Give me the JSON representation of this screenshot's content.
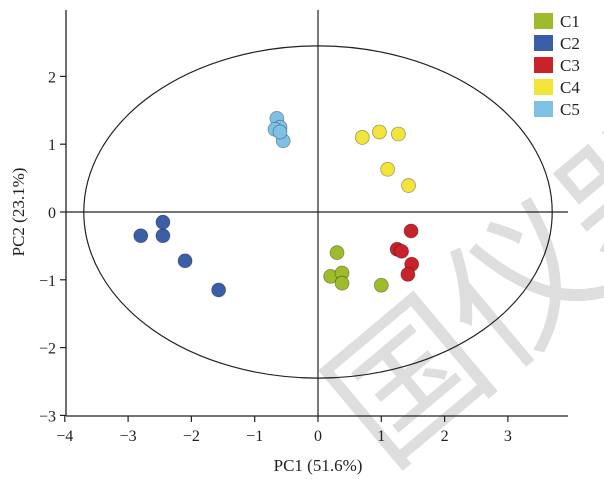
{
  "chart_data": {
    "type": "scatter",
    "title": "",
    "xlabel": "PC1 (51.6%)",
    "ylabel": "PC2 (23.1%)",
    "xlim": [
      -4,
      4
    ],
    "ylim": [
      -3,
      3
    ],
    "xticks": [
      -4,
      -3,
      -2,
      -1,
      0,
      1,
      2,
      3
    ],
    "yticks": [
      -3,
      -2,
      -1,
      0,
      1,
      2
    ],
    "x_tick_labels": [
      "−4",
      "−3",
      "−2",
      "−1",
      "0",
      "1",
      "2",
      "3"
    ],
    "y_tick_labels": [
      "−3",
      "−2",
      "−1",
      "0",
      "1",
      "2"
    ],
    "grid": false,
    "legend_position": "top-right",
    "confidence_ellipse": {
      "center": [
        0,
        0
      ],
      "rx": 3.7,
      "ry": 2.45
    },
    "series": [
      {
        "name": "C1",
        "color": "#9dbb2a",
        "points": [
          [
            0.3,
            -0.6
          ],
          [
            0.2,
            -0.95
          ],
          [
            0.38,
            -0.9
          ],
          [
            0.38,
            -1.05
          ],
          [
            1.0,
            -1.08
          ]
        ]
      },
      {
        "name": "C2",
        "color": "#3a5ea8",
        "points": [
          [
            -2.8,
            -0.35
          ],
          [
            -2.45,
            -0.35
          ],
          [
            -2.45,
            -0.15
          ],
          [
            -2.1,
            -0.72
          ],
          [
            -1.57,
            -1.15
          ]
        ]
      },
      {
        "name": "C3",
        "color": "#c8232a",
        "points": [
          [
            1.25,
            -0.55
          ],
          [
            1.32,
            -0.58
          ],
          [
            1.47,
            -0.28
          ],
          [
            1.48,
            -0.77
          ],
          [
            1.42,
            -0.92
          ]
        ]
      },
      {
        "name": "C4",
        "color": "#f2e43a",
        "points": [
          [
            0.7,
            1.1
          ],
          [
            0.97,
            1.18
          ],
          [
            1.27,
            1.15
          ],
          [
            1.1,
            0.63
          ],
          [
            1.43,
            0.39
          ]
        ]
      },
      {
        "name": "C5",
        "color": "#7ec0e6",
        "points": [
          [
            -0.65,
            1.38
          ],
          [
            -0.6,
            1.25
          ],
          [
            -0.68,
            1.22
          ],
          [
            -0.55,
            1.05
          ],
          [
            -0.6,
            1.18
          ]
        ]
      }
    ]
  },
  "watermark": "国仪器"
}
